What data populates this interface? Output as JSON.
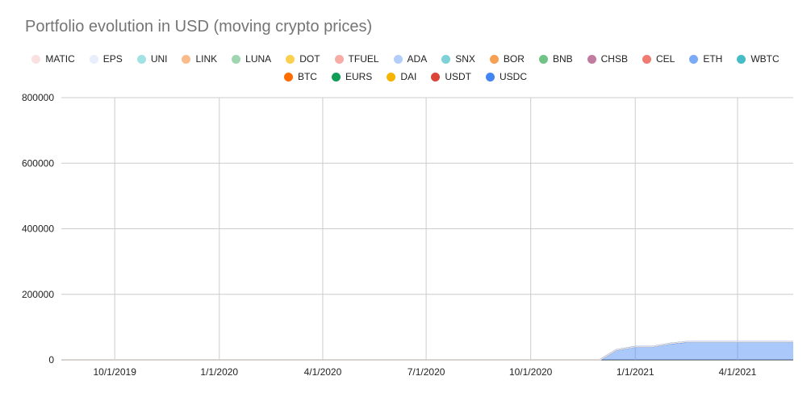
{
  "chart_data": {
    "type": "area",
    "stacked": true,
    "title": "Portfolio evolution in USD (moving crypto prices)",
    "xlabel": "",
    "ylabel": "",
    "ylim": [
      0,
      800000
    ],
    "xlim": [
      "2019-08-15",
      "2021-05-20"
    ],
    "y_ticks": [
      "0",
      "200000",
      "400000",
      "600000",
      "800000"
    ],
    "x_ticks": [
      "10/1/2019",
      "1/1/2020",
      "4/1/2020",
      "7/1/2020",
      "10/1/2020",
      "1/1/2021",
      "4/1/2021"
    ],
    "grid": true,
    "legend_position": "top",
    "dates": [
      "2019-08-15",
      "2019-10-01",
      "2019-11-01",
      "2019-11-05",
      "2019-12-01",
      "2020-01-01",
      "2020-02-01",
      "2020-03-01",
      "2020-03-15",
      "2020-04-01",
      "2020-05-01",
      "2020-06-01",
      "2020-07-01",
      "2020-07-20",
      "2020-08-15",
      "2020-09-01",
      "2020-09-20",
      "2020-10-01",
      "2020-10-20",
      "2020-11-01",
      "2020-11-20",
      "2020-12-01",
      "2020-12-15",
      "2021-01-01",
      "2021-01-15",
      "2021-02-01",
      "2021-02-15",
      "2021-03-01",
      "2021-03-15",
      "2021-04-01",
      "2021-04-15",
      "2021-05-01",
      "2021-05-20"
    ],
    "series": [
      {
        "name": "USDC",
        "color": "#4285f4",
        "values": [
          0,
          0,
          0,
          0,
          0,
          0,
          0,
          0,
          0,
          0,
          0,
          0,
          0,
          0,
          0,
          0,
          0,
          0,
          0,
          0,
          0,
          0,
          30000,
          40000,
          40000,
          50000,
          55000,
          55000,
          55000,
          55000,
          55000,
          55000,
          55000
        ]
      },
      {
        "name": "USDT",
        "color": "#db4437",
        "values": [
          0,
          0,
          0,
          0,
          0,
          0,
          0,
          0,
          0,
          0,
          0,
          0,
          0,
          0,
          0,
          0,
          0,
          0,
          0,
          0,
          0,
          0,
          0,
          0,
          0,
          0,
          0,
          0,
          0,
          0,
          0,
          0,
          0
        ]
      },
      {
        "name": "DAI",
        "color": "#f4b400",
        "values": [
          0,
          0,
          0,
          0,
          0,
          0,
          0,
          0,
          0,
          0,
          0,
          0,
          0,
          0,
          0,
          0,
          0,
          0,
          0,
          0,
          0,
          0,
          0,
          0,
          0,
          0,
          0,
          0,
          0,
          0,
          0,
          0,
          0
        ]
      },
      {
        "name": "EURS",
        "color": "#0f9d58",
        "values": [
          0,
          0,
          0,
          0,
          0,
          0,
          0,
          0,
          0,
          0,
          0,
          0,
          0,
          0,
          0,
          0,
          0,
          0,
          0,
          0,
          0,
          0,
          0,
          0,
          0,
          0,
          0,
          0,
          0,
          0,
          0,
          0,
          0
        ]
      },
      {
        "name": "BTC",
        "color": "#ff6d00",
        "values": [
          0,
          0,
          0,
          0,
          0,
          0,
          0,
          0,
          0,
          0,
          0,
          0,
          0,
          0,
          0,
          0,
          0,
          0,
          0,
          0,
          0,
          0,
          0,
          0,
          0,
          0,
          0,
          0,
          0,
          0,
          0,
          0,
          0
        ]
      },
      {
        "name": "WBTC",
        "color": "#46bdc6",
        "values": [
          0,
          0,
          0,
          0,
          0,
          0,
          0,
          0,
          0,
          0,
          0,
          0,
          0,
          0,
          0,
          0,
          0,
          0,
          0,
          0,
          0,
          0,
          0,
          0,
          0,
          0,
          0,
          0,
          0,
          0,
          0,
          0,
          0
        ]
      },
      {
        "name": "ETH",
        "color": "#7baaf7",
        "values": [
          0,
          0,
          0,
          0,
          0,
          0,
          0,
          0,
          0,
          0,
          0,
          0,
          0,
          0,
          0,
          0,
          0,
          0,
          0,
          0,
          0,
          0,
          0,
          0,
          0,
          0,
          0,
          0,
          0,
          0,
          0,
          0,
          0
        ]
      },
      {
        "name": "CEL",
        "color": "#f07b72",
        "values": [
          0,
          0,
          0,
          0,
          0,
          0,
          0,
          0,
          0,
          0,
          0,
          0,
          0,
          0,
          0,
          0,
          0,
          0,
          0,
          0,
          0,
          0,
          0,
          0,
          0,
          0,
          0,
          0,
          0,
          0,
          0,
          0,
          0
        ]
      },
      {
        "name": "CHSB",
        "color": "#c27ba0",
        "values": [
          0,
          0,
          0,
          0,
          0,
          0,
          0,
          0,
          0,
          0,
          0,
          0,
          0,
          0,
          0,
          0,
          0,
          0,
          0,
          0,
          0,
          0,
          0,
          0,
          0,
          0,
          0,
          0,
          0,
          0,
          0,
          0,
          0
        ]
      },
      {
        "name": "BNB",
        "color": "#71c287",
        "values": [
          0,
          0,
          0,
          0,
          0,
          0,
          0,
          0,
          0,
          0,
          0,
          0,
          0,
          0,
          0,
          0,
          0,
          0,
          0,
          0,
          0,
          0,
          0,
          0,
          0,
          0,
          0,
          0,
          0,
          0,
          0,
          0,
          0
        ]
      },
      {
        "name": "BOR",
        "color": "#f6a054",
        "values": [
          0,
          0,
          0,
          0,
          0,
          0,
          0,
          0,
          0,
          0,
          0,
          0,
          0,
          0,
          0,
          0,
          0,
          0,
          0,
          0,
          0,
          0,
          0,
          0,
          0,
          0,
          0,
          0,
          0,
          0,
          0,
          0,
          0
        ]
      },
      {
        "name": "SNX",
        "color": "#7ed1d7",
        "values": [
          0,
          0,
          0,
          0,
          0,
          0,
          0,
          0,
          0,
          0,
          0,
          0,
          0,
          0,
          0,
          0,
          0,
          0,
          0,
          0,
          0,
          0,
          0,
          0,
          0,
          0,
          0,
          0,
          0,
          0,
          0,
          0,
          0
        ]
      },
      {
        "name": "ADA",
        "color": "#b3cefb",
        "values": [
          0,
          0,
          0,
          0,
          0,
          0,
          0,
          0,
          0,
          0,
          0,
          0,
          0,
          0,
          0,
          0,
          0,
          0,
          0,
          0,
          0,
          0,
          0,
          0,
          0,
          0,
          0,
          0,
          0,
          0,
          0,
          0,
          0
        ]
      },
      {
        "name": "TFUEL",
        "color": "#f7aca5",
        "values": [
          0,
          0,
          0,
          0,
          0,
          0,
          0,
          0,
          0,
          0,
          0,
          0,
          0,
          0,
          0,
          0,
          0,
          0,
          0,
          0,
          0,
          0,
          0,
          0,
          0,
          0,
          0,
          0,
          0,
          0,
          0,
          0,
          0
        ]
      },
      {
        "name": "DOT",
        "color": "#fcd04f",
        "values": [
          0,
          0,
          0,
          0,
          0,
          0,
          0,
          0,
          0,
          0,
          0,
          0,
          0,
          0,
          0,
          0,
          0,
          0,
          0,
          0,
          0,
          0,
          0,
          0,
          0,
          0,
          0,
          0,
          0,
          0,
          0,
          0,
          0
        ]
      },
      {
        "name": "LUNA",
        "color": "#9fd6b0",
        "values": [
          0,
          0,
          0,
          0,
          0,
          0,
          0,
          0,
          0,
          0,
          0,
          0,
          0,
          0,
          0,
          0,
          0,
          0,
          0,
          0,
          0,
          0,
          0,
          0,
          0,
          0,
          0,
          0,
          0,
          0,
          0,
          0,
          0
        ]
      },
      {
        "name": "LINK",
        "color": "#fbbc8b",
        "values": [
          0,
          0,
          0,
          0,
          0,
          0,
          0,
          0,
          0,
          0,
          0,
          0,
          0,
          0,
          0,
          0,
          0,
          0,
          0,
          0,
          0,
          0,
          0,
          0,
          0,
          0,
          0,
          0,
          0,
          0,
          0,
          0,
          0
        ]
      },
      {
        "name": "UNI",
        "color": "#a2e1e4",
        "values": [
          0,
          0,
          0,
          0,
          0,
          0,
          0,
          0,
          0,
          0,
          0,
          0,
          0,
          0,
          0,
          0,
          0,
          0,
          0,
          0,
          0,
          0,
          0,
          0,
          0,
          0,
          0,
          0,
          0,
          0,
          0,
          0,
          0
        ]
      },
      {
        "name": "EPS",
        "color": "#e8eefb",
        "values": [
          0,
          0,
          0,
          0,
          0,
          0,
          0,
          0,
          0,
          0,
          0,
          0,
          0,
          0,
          0,
          0,
          0,
          0,
          0,
          0,
          0,
          0,
          0,
          0,
          0,
          0,
          0,
          0,
          0,
          0,
          0,
          0,
          0
        ]
      },
      {
        "name": "MATIC",
        "color": "#fbe0e0",
        "values": [
          0,
          0,
          0,
          0,
          0,
          0,
          0,
          0,
          0,
          0,
          0,
          0,
          0,
          0,
          0,
          0,
          0,
          0,
          0,
          0,
          0,
          0,
          0,
          0,
          0,
          0,
          0,
          0,
          0,
          0,
          0,
          0,
          0
        ]
      }
    ],
    "legend_rows": [
      [
        "MATIC",
        "EPS",
        "UNI",
        "LINK",
        "LUNA",
        "DOT",
        "TFUEL",
        "ADA",
        "SNX",
        "BOR",
        "BNB",
        "CHSB",
        "CEL",
        "ETH",
        "WBTC"
      ],
      [
        "BTC",
        "EURS",
        "DAI",
        "USDT",
        "USDC"
      ]
    ]
  }
}
